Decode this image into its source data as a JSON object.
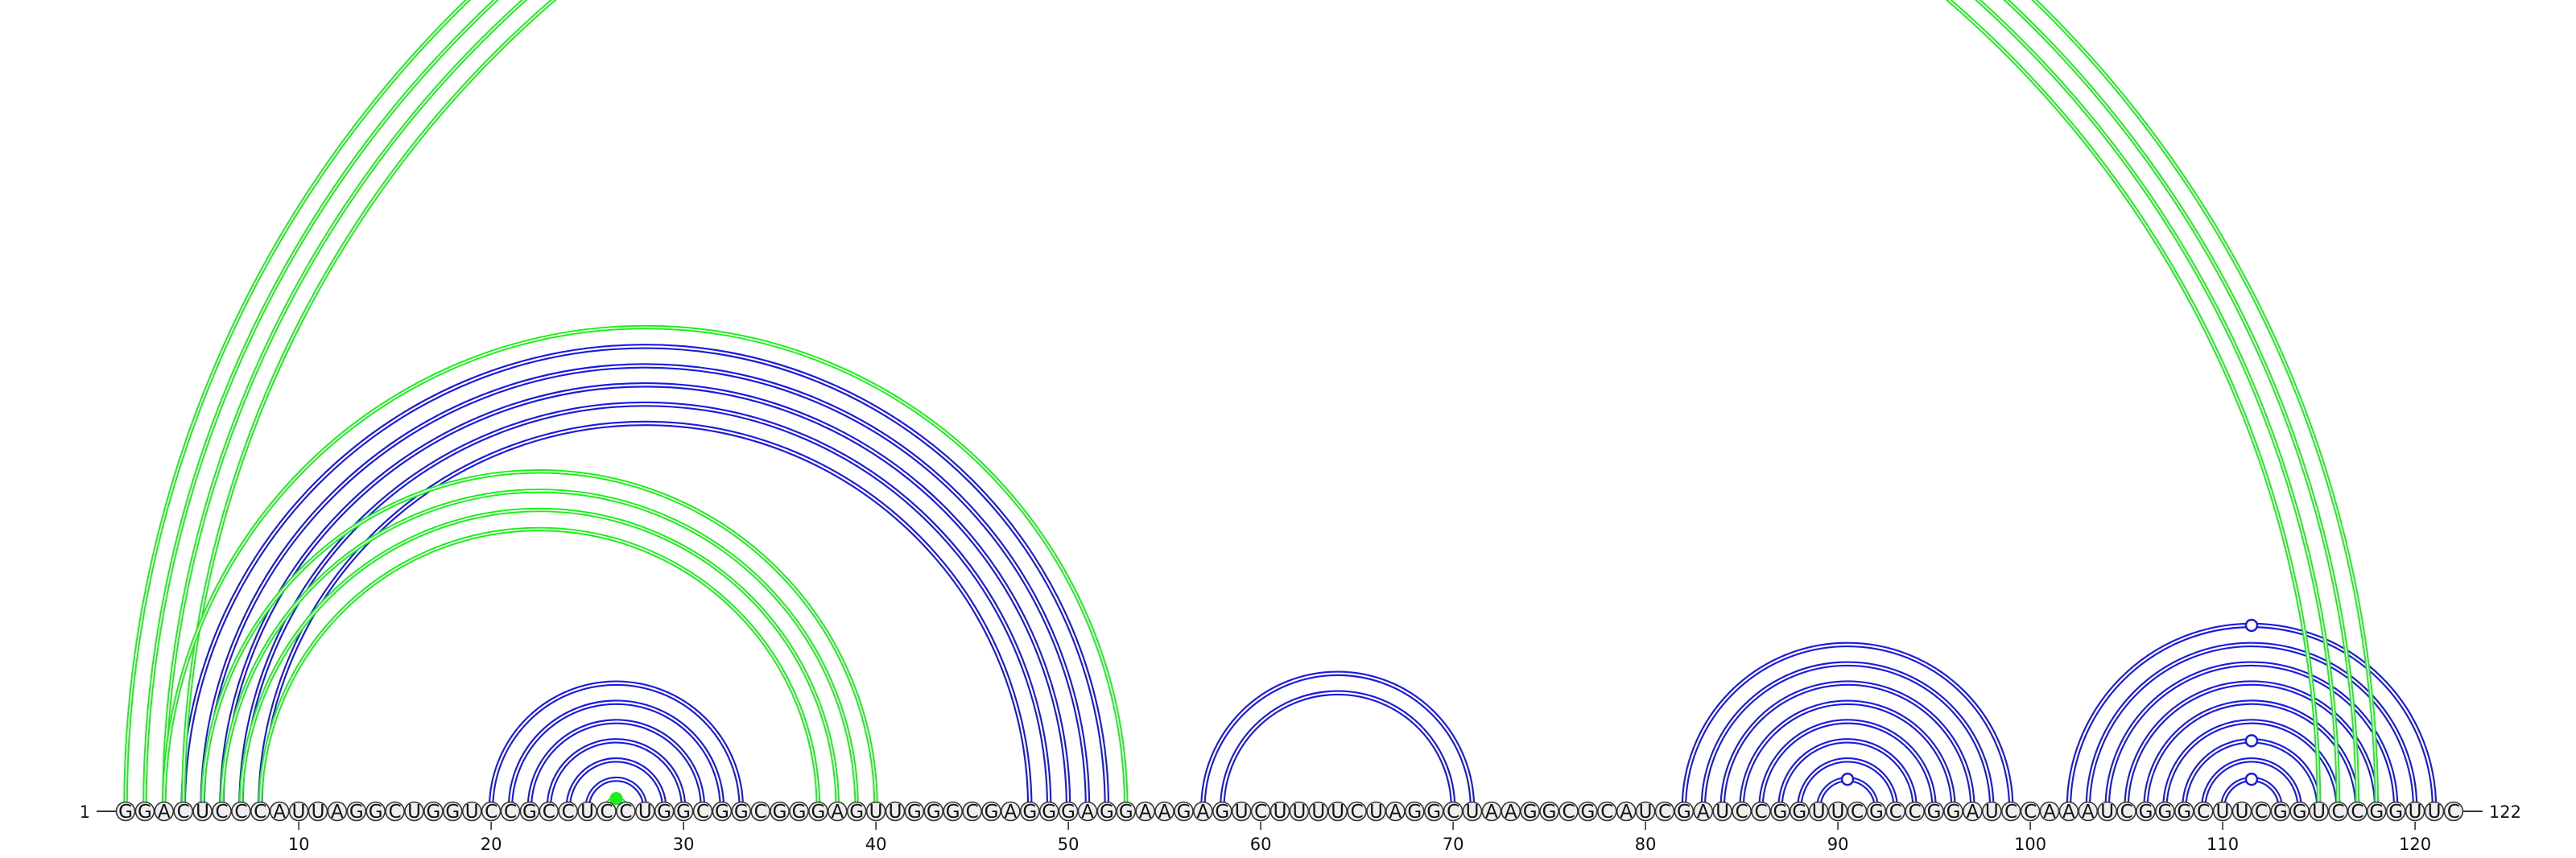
{
  "sequence": "GGACUCCCAUUAGGCUGGUCCGCCUCCUGGCGGCGGGAGUUGGGCGAGGGAGGAAGAGUCUUUUCUAGGCUAAGGCGCAUCGAUCCGGUUCGCCGGAUCCAAAUCGGGCUUCGGUCCGGUUC",
  "start_label": "1",
  "end_label": "122",
  "tick_labels": [
    "10",
    "20",
    "30",
    "40",
    "50",
    "60",
    "70",
    "80",
    "90",
    "100",
    "110",
    "120"
  ],
  "colors": {
    "blue": "#1a1adf",
    "green": "#19f019",
    "circle_stroke": "#333333",
    "circle_fill": "#eeeeee"
  },
  "chart_data": {
    "type": "arc-diagram",
    "length": 122,
    "blue_pairs": [
      [
        4,
        52
      ],
      [
        5,
        51
      ],
      [
        6,
        50
      ],
      [
        7,
        49
      ],
      [
        8,
        48
      ],
      [
        20,
        33
      ],
      [
        21,
        32
      ],
      [
        22,
        31
      ],
      [
        23,
        30
      ],
      [
        24,
        29
      ],
      [
        25,
        28
      ],
      [
        57,
        71
      ],
      [
        58,
        70
      ],
      [
        82,
        99
      ],
      [
        83,
        98
      ],
      [
        84,
        97
      ],
      [
        85,
        96
      ],
      [
        86,
        95
      ],
      [
        87,
        94
      ],
      [
        88,
        93
      ],
      [
        89,
        92
      ],
      [
        102,
        121
      ],
      [
        103,
        120
      ],
      [
        104,
        119
      ],
      [
        105,
        118
      ],
      [
        106,
        117
      ],
      [
        107,
        116
      ],
      [
        108,
        115
      ],
      [
        109,
        114
      ],
      [
        110,
        113
      ]
    ],
    "green_pairs": [
      [
        1,
        118
      ],
      [
        2,
        117
      ],
      [
        3,
        116
      ],
      [
        4,
        115
      ],
      [
        3,
        53
      ],
      [
        5,
        40
      ],
      [
        6,
        39
      ],
      [
        7,
        38
      ],
      [
        8,
        37
      ],
      [
        26,
        27
      ]
    ],
    "green_markers": [
      27.5,
      26.5
    ],
    "blue_markers": [
      111.5,
      90.5
    ]
  }
}
